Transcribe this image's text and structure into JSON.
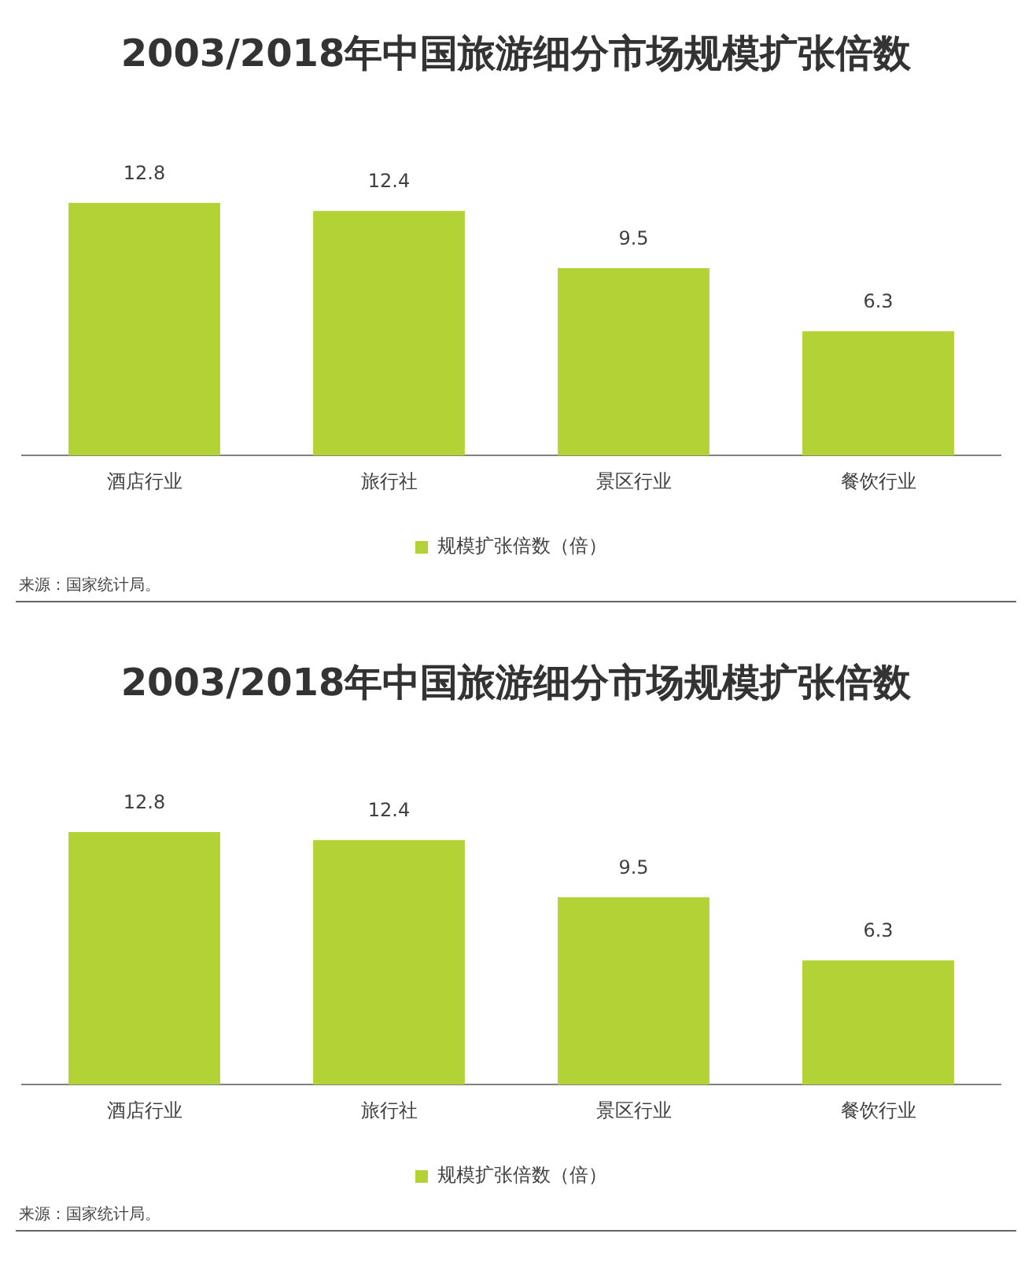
{
  "chart_data": [
    {
      "type": "bar",
      "title": "2003/2018年中国旅游细分市场规模扩张倍数",
      "categories": [
        "酒店行业",
        "旅行社",
        "景区行业",
        "餐饮行业"
      ],
      "series": [
        {
          "name": "规模扩张倍数（倍）",
          "color": "#b2d235",
          "values": [
            12.8,
            12.4,
            9.5,
            6.3
          ]
        }
      ],
      "data_labels": true,
      "legend": "bottom",
      "grid": false,
      "annotations": [
        "来源：国家统计局。"
      ]
    },
    {
      "type": "bar",
      "title": "2003/2018年中国旅游细分市场规模扩张倍数",
      "categories": [
        "酒店行业",
        "旅行社",
        "景区行业",
        "餐饮行业"
      ],
      "series": [
        {
          "name": "规模扩张倍数（倍）",
          "color": "#b2d235",
          "values": [
            12.8,
            12.4,
            9.5,
            6.3
          ]
        }
      ],
      "data_labels": true,
      "legend": "bottom",
      "grid": false,
      "annotations": [
        "来源：国家统计局。"
      ]
    }
  ]
}
